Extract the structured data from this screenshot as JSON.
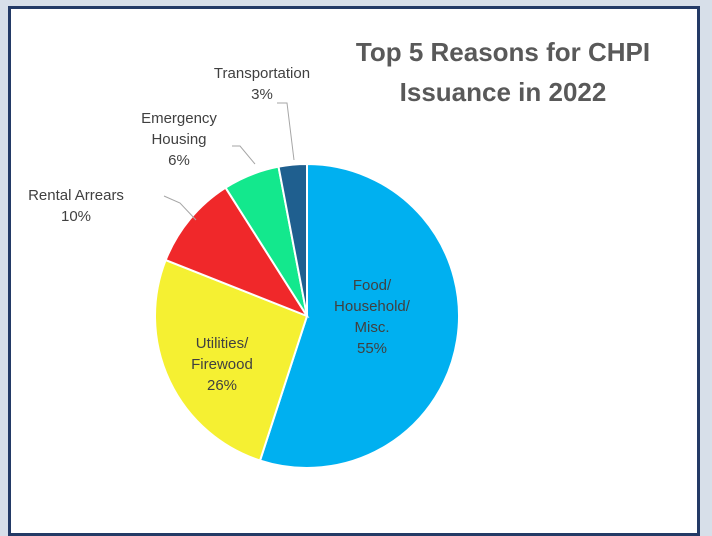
{
  "chart_data": {
    "type": "pie",
    "title_lines": [
      "Top 5 Reasons for CHPI",
      "Issuance in 2022"
    ],
    "slices": [
      {
        "label_lines": [
          "Food/",
          "Household/",
          "Misc."
        ],
        "pct_label": "55%",
        "value": 55,
        "color": "#00b0f0"
      },
      {
        "label_lines": [
          "Utilities/",
          "Firewood"
        ],
        "pct_label": "26%",
        "value": 26,
        "color": "#f5f032"
      },
      {
        "label_lines": [
          "Rental Arrears"
        ],
        "pct_label": "10%",
        "value": 10,
        "color": "#f0282a"
      },
      {
        "label_lines": [
          "Emergency",
          "Housing"
        ],
        "pct_label": "6%",
        "value": 6,
        "color": "#13e88d"
      },
      {
        "label_lines": [
          "Transportation"
        ],
        "pct_label": "3%",
        "value": 3,
        "color": "#1f5f8f"
      }
    ]
  },
  "colors": {
    "background": "#d7dfe9",
    "frame_border": "#233a66",
    "slice_border": "#ffffff",
    "text": "#404040",
    "title": "#595959"
  }
}
